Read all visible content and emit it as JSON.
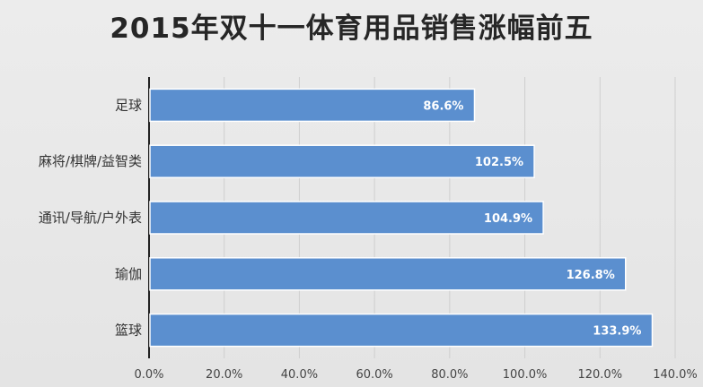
{
  "chart_data": {
    "type": "bar",
    "orientation": "horizontal",
    "title": "2015年双十一体育用品销售涨幅前五",
    "categories": [
      "足球",
      "麻将/棋牌/益智类",
      "通讯/导航/户外表",
      "瑜伽",
      "篮球"
    ],
    "values": [
      86.6,
      102.5,
      104.9,
      126.8,
      133.9
    ],
    "data_labels": [
      "86.6%",
      "102.5%",
      "104.9%",
      "126.8%",
      "133.9%"
    ],
    "x_ticks": [
      "0.0%",
      "20.0%",
      "40.0%",
      "60.0%",
      "80.0%",
      "100.0%",
      "120.0%",
      "140.0%"
    ],
    "xlim": [
      0,
      140
    ],
    "grid": true,
    "bar_color": "#5b8fcf",
    "bar_edge_color": "#ffffff"
  }
}
